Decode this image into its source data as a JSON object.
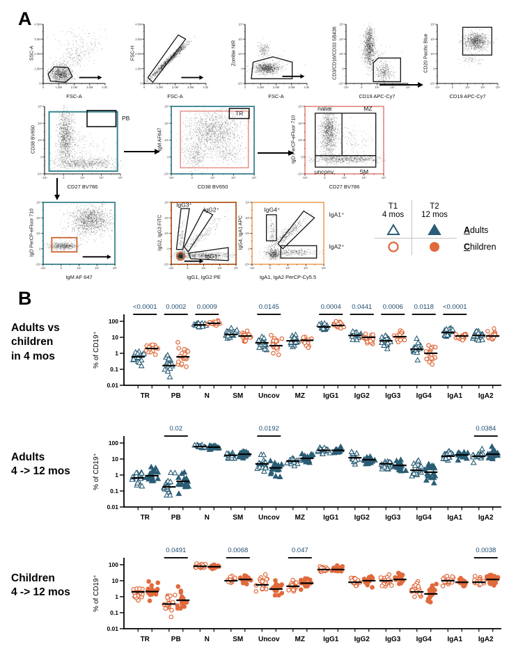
{
  "colors": {
    "adult": "#2a5d75",
    "child": "#e06a3c",
    "pvalue": "#1d4a6e",
    "teal_gate": "#37838e",
    "salmon_gate": "#e5938a",
    "orange_gate": "#c9632e",
    "dark_orange": "#b05a22",
    "light_orange": "#f2a96b"
  },
  "panel_a": {
    "label": "A",
    "tick_sets": {
      "linM": [
        "0",
        "1.0M",
        "2.0M",
        "3.0M",
        "4.0M"
      ],
      "bilog": [
        "-10⁴",
        "0",
        "10⁴",
        "10⁵",
        "10⁶"
      ]
    },
    "plots": [
      {
        "xlabel": "FSC-A",
        "ylabel": "SSC-A",
        "xticks": "linM",
        "yticks": "linM",
        "gate_labels": []
      },
      {
        "xlabel": "FSC-A",
        "ylabel": "FSC-H",
        "xticks": "linM",
        "yticks": "linM",
        "gate_labels": []
      },
      {
        "xlabel": "FSC-A",
        "ylabel": "Zombie NIR",
        "xticks": "linM",
        "yticks": "bilog",
        "gate_labels": []
      },
      {
        "xlabel": "CD19 APC-Cy7",
        "ylabel": "CD3/CD16/CD33 SB436",
        "xticks": "bilog",
        "yticks": "bilog",
        "gate_labels": []
      },
      {
        "xlabel": "CD19 APC-Cy7",
        "ylabel": "CD20 Pacific Blue",
        "xticks": "bilog",
        "yticks": "bilog",
        "gate_labels": []
      },
      {
        "xlabel": "CD27 BV786",
        "ylabel": "CD38 BV650",
        "xticks": "bilog",
        "yticks": "bilog",
        "gate_labels": [
          "PB"
        ]
      },
      {
        "xlabel": "CD38 BV650",
        "ylabel": "IgM AF647",
        "xticks": "bilog",
        "yticks": "bilog",
        "gate_labels": [
          "TR"
        ]
      },
      {
        "xlabel": "CD27 BV786",
        "ylabel": "IgD PerCP-eFluor 710",
        "xticks": "bilog",
        "yticks": "bilog",
        "gate_labels": [
          "naive",
          "MZ",
          "unconv.",
          "SM"
        ]
      },
      {
        "xlabel": "IgM AF 647",
        "ylabel": "IgD PerCP-eFluor 710",
        "xticks": "bilog",
        "yticks": "bilog",
        "gate_labels": []
      },
      {
        "xlabel": "IgG1, IgG2 PE",
        "ylabel": "IgG2, IgG3 FITC",
        "xticks": "bilog",
        "yticks": "bilog",
        "gate_labels": [
          "IgG3⁺",
          "IgG2⁺",
          "IgG1⁺"
        ]
      },
      {
        "xlabel": "IgA1, IgA2 PerCP-Cy5.5",
        "ylabel": "IgG4, IgA1 APC",
        "xticks": "bilog",
        "yticks": "bilog",
        "gate_labels": [
          "IgG4⁺",
          "IgA1⁺",
          "IgA2⁺"
        ]
      }
    ],
    "legend": {
      "t1": "T1",
      "t1_sub": "4 mos",
      "t2": "T2",
      "t2_sub": "12 mos",
      "adults": "Adults",
      "children": "Children"
    }
  },
  "panel_b": {
    "label": "B",
    "ylabel": "% of CD19⁺",
    "yticks": [
      "100",
      "10",
      "1",
      "0.1",
      "0.01"
    ],
    "spreads": [
      0.25,
      0.35,
      0.07,
      0.15,
      0.25,
      0.2,
      0.1,
      0.18,
      0.22,
      0.3,
      0.15,
      0.18
    ],
    "row_labels": [
      [
        "Adults vs",
        "children",
        "in 4 mos"
      ],
      [
        "Adults",
        "4 -> 12 mos"
      ],
      [
        "Children",
        "4 -> 12 mos"
      ]
    ]
  },
  "chart_data": [
    {
      "type": "scatter",
      "title": "Adults vs children in 4 mos",
      "ylabel": "% of CD19⁺",
      "yscale": "log",
      "ylim": [
        0.01,
        300
      ],
      "grid": false,
      "categories": [
        "TR",
        "PB",
        "N",
        "SM",
        "Uncov",
        "MZ",
        "IgG1",
        "IgG2",
        "IgG3",
        "IgG4",
        "IgA1",
        "IgA2"
      ],
      "series": [
        {
          "name": "Adults T1 (4 mos)",
          "marker": "open-triangle",
          "color": "#2a5d75",
          "values": [
            0.6,
            0.17,
            60,
            15,
            4.5,
            6,
            45,
            13,
            6,
            1.8,
            20,
            13
          ]
        },
        {
          "name": "Children T1 (4 mos)",
          "marker": "open-circle",
          "color": "#e06a3c",
          "values": [
            2,
            0.6,
            75,
            12,
            3,
            6.5,
            55,
            10,
            11,
            1.0,
            12,
            12
          ]
        }
      ],
      "p_values": {
        "TR": "<0.0001",
        "PB": "0.0002",
        "N": "0.0009",
        "Uncov": "0.0145",
        "IgG1": "0.0004",
        "IgG2": "0.0441",
        "IgG3": "0.0006",
        "IgG4": "0.0118",
        "IgA1": "<0.0001"
      }
    },
    {
      "type": "scatter",
      "title": "Adults 4 -> 12 mos",
      "ylabel": "% of CD19⁺",
      "yscale": "log",
      "ylim": [
        0.01,
        300
      ],
      "grid": false,
      "categories": [
        "TR",
        "PB",
        "N",
        "SM",
        "Uncov",
        "MZ",
        "IgG1",
        "IgG2",
        "IgG3",
        "IgG4",
        "IgA1",
        "IgA2"
      ],
      "series": [
        {
          "name": "Adults T1 (4 mos)",
          "marker": "open-triangle",
          "color": "#2a5d75",
          "values": [
            0.65,
            0.18,
            60,
            17,
            5,
            7.5,
            35,
            12,
            5,
            2,
            15,
            15
          ]
        },
        {
          "name": "Adults T2 (12 mos)",
          "marker": "filled-triangle",
          "color": "#2a5d75",
          "values": [
            0.9,
            0.4,
            55,
            20,
            2.8,
            11,
            35,
            9,
            4,
            1.5,
            18,
            20
          ]
        }
      ],
      "p_values": {
        "PB": "0.02",
        "Uncov": "0.0192",
        "IgA2": "0.0384"
      }
    },
    {
      "type": "scatter",
      "title": "Children 4 -> 12 mos",
      "ylabel": "% of CD19⁺",
      "yscale": "log",
      "ylim": [
        0.01,
        300
      ],
      "grid": false,
      "categories": [
        "TR",
        "PB",
        "N",
        "SM",
        "Uncov",
        "MZ",
        "IgG1",
        "IgG2",
        "IgG3",
        "IgG4",
        "IgA1",
        "IgA2"
      ],
      "series": [
        {
          "name": "Children T1 (4 mos)",
          "marker": "open-circle",
          "color": "#e06a3c",
          "values": [
            2,
            0.35,
            80,
            10,
            5.5,
            4.5,
            50,
            8,
            10,
            2,
            10,
            8
          ]
        },
        {
          "name": "Children T2 (12 mos)",
          "marker": "filled-circle",
          "color": "#e06a3c",
          "values": [
            2.1,
            0.6,
            75,
            12,
            3,
            7,
            50,
            10,
            12,
            1.5,
            8,
            12
          ]
        }
      ],
      "p_values": {
        "PB": "0.0491",
        "SM": "0.0068",
        "MZ": "0.047",
        "IgA2": "0.0038"
      }
    }
  ]
}
